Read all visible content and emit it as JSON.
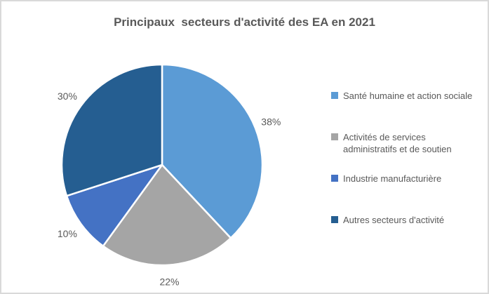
{
  "chart_data": {
    "type": "pie",
    "title": "Principaux  secteurs d'activité des EA en 2021",
    "unit": "%",
    "start_angle_deg": 0,
    "direction": "clockwise",
    "labels": "outside-end-percent",
    "legend_position": "right",
    "slices": [
      {
        "label": "Santé humaine et action sociale",
        "value": 38,
        "percent_label": "38%",
        "color": "#5B9BD5"
      },
      {
        "label": "Activités de services administratifs et de soutien",
        "value": 22,
        "percent_label": "22%",
        "color": "#A5A5A5"
      },
      {
        "label": "Industrie manufacturière",
        "value": 10,
        "percent_label": "10%",
        "color": "#4472C4"
      },
      {
        "label": "Autres secteurs d'activité",
        "value": 30,
        "percent_label": "30%",
        "color": "#255E91"
      }
    ]
  },
  "colors": {
    "title_text": "#595959",
    "data_label_text": "#595959",
    "legend_text": "#595959",
    "frame_border": "#D9D9D9",
    "slice_separator": "#FFFFFF",
    "background": "#FFFFFF"
  }
}
